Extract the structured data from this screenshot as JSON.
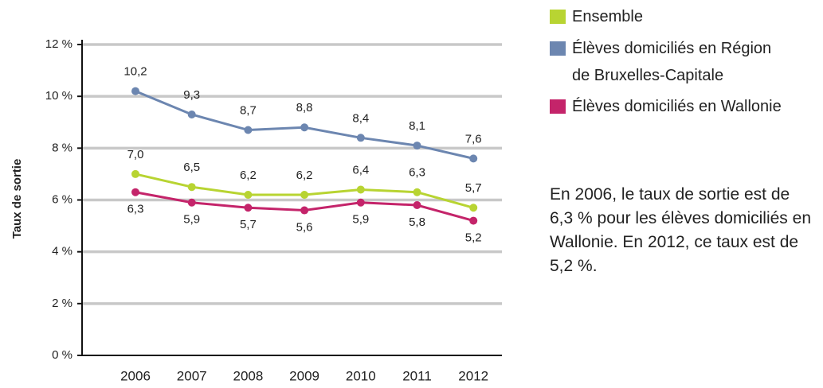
{
  "chart_data": {
    "type": "line",
    "y_label": "Taux de sortie",
    "categories": [
      "2006",
      "2007",
      "2008",
      "2009",
      "2010",
      "2011",
      "2012"
    ],
    "series": [
      {
        "name": "Ensemble",
        "color": "#b8d432",
        "values": [
          7.0,
          6.5,
          6.2,
          6.2,
          6.4,
          6.3,
          5.7
        ],
        "value_labels": [
          "7,0",
          "6,5",
          "6,2",
          "6,2",
          "6,4",
          "6,3",
          "5,7"
        ]
      },
      {
        "name": "Élèves domiciliés en Région de Bruxelles-Capitale",
        "color": "#6c86b0",
        "values": [
          10.2,
          9.3,
          8.7,
          8.8,
          8.4,
          8.1,
          7.6
        ],
        "value_labels": [
          "10,2",
          "9,3",
          "8,7",
          "8,8",
          "8,4",
          "8,1",
          "7,6"
        ]
      },
      {
        "name": "Élèves domiciliés en Wallonie",
        "color": "#c4246a",
        "values": [
          6.3,
          5.9,
          5.7,
          5.6,
          5.9,
          5.8,
          5.2
        ],
        "value_labels": [
          "6,3",
          "5,9",
          "5,7",
          "5,6",
          "5,9",
          "5,8",
          "5,2"
        ]
      }
    ],
    "ylim": [
      0,
      12
    ],
    "yticks": [
      {
        "value": 0,
        "label": "0 %"
      },
      {
        "value": 2,
        "label": "2 %"
      },
      {
        "value": 4,
        "label": "4 %"
      },
      {
        "value": 6,
        "label": "6 %"
      },
      {
        "value": 8,
        "label": "8 %"
      },
      {
        "value": 10,
        "label": "10 %"
      },
      {
        "value": 12,
        "label": "12 %"
      }
    ],
    "grid": true,
    "annotation": "En 2006, le taux de sortie est de 6,3 % pour les élèves domiciliés en Wallonie. En 2012, ce taux est de 5,2 %."
  }
}
